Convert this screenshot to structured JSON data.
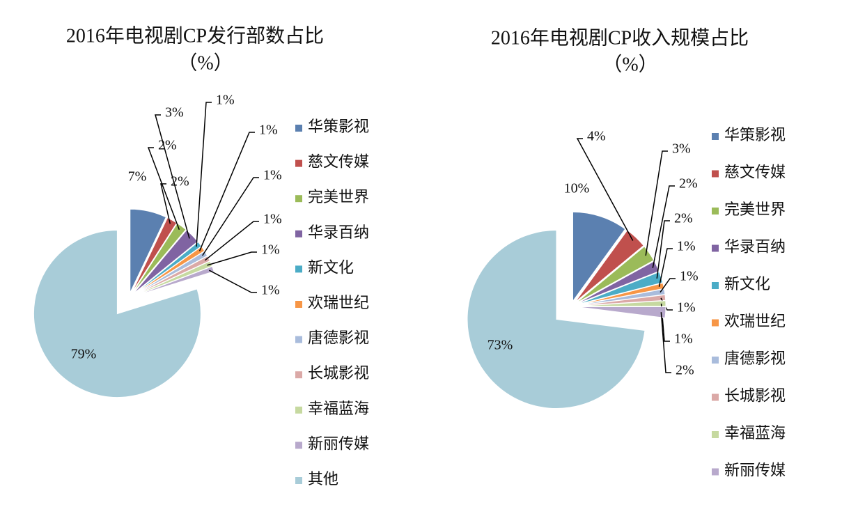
{
  "chart_data": [
    {
      "type": "pie",
      "title": "2016年电视剧CP发行部数占比",
      "subtitle": "（%）",
      "categories": [
        "华策影视",
        "慈文传媒",
        "完美世界",
        "华录百纳",
        "新文化",
        "欢瑞世纪",
        "唐德影视",
        "长城影视",
        "幸福蓝海",
        "新丽传媒",
        "其他"
      ],
      "values": [
        7,
        2,
        2,
        3,
        1,
        1,
        1,
        1,
        1,
        1,
        79
      ],
      "value_labels": [
        "7%",
        "2%",
        "2%",
        "3%",
        "1%",
        "1%",
        "1%",
        "1%",
        "1%",
        "1%",
        "79%"
      ],
      "colors": [
        "#5b80b0",
        "#c0504d",
        "#9bbb59",
        "#8064a2",
        "#4bacc6",
        "#f79646",
        "#a9bcdc",
        "#dba9a7",
        "#c6d9a0",
        "#b8a9cc",
        "#a8ccd8"
      ]
    },
    {
      "type": "pie",
      "title": "2016年电视剧CP收入规模占比",
      "subtitle": "（%）",
      "categories": [
        "华策影视",
        "慈文传媒",
        "完美世界",
        "华录百纳",
        "新文化",
        "欢瑞世纪",
        "唐德影视",
        "长城影视",
        "幸福蓝海",
        "新丽传媒",
        null
      ],
      "values": [
        10,
        4,
        3,
        2,
        2,
        1,
        1,
        1,
        1,
        2,
        73
      ],
      "value_labels": [
        "10%",
        "4%",
        "3%",
        "2%",
        "2%",
        "1%",
        "1%",
        "1%",
        "1%",
        "2%",
        "73%"
      ],
      "colors": [
        "#5b80b0",
        "#c0504d",
        "#9bbb59",
        "#8064a2",
        "#4bacc6",
        "#f79646",
        "#a9bcdc",
        "#dba9a7",
        "#c6d9a0",
        "#b8a9cc",
        "#a8ccd8"
      ]
    }
  ]
}
